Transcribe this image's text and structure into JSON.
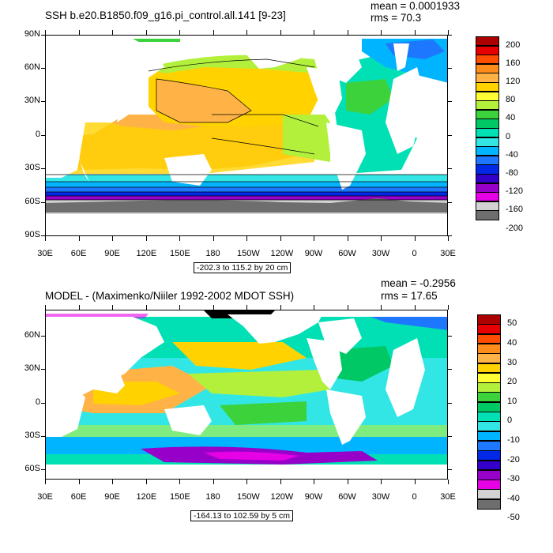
{
  "panels": [
    {
      "title": "SSH b.e20.B1850.f09_g16.pi_control.all.141 [9-23]",
      "mean_label": "mean = 0.0001933",
      "rms_label": "rms = 70.3",
      "range_label": "-202.3 to 115.2 by 20 cm",
      "lat_labels": [
        "90N",
        "60N",
        "30N",
        "0",
        "30S",
        "60S",
        "90S"
      ],
      "lon_labels": [
        "30E",
        "60E",
        "90E",
        "120E",
        "150E",
        "180",
        "150W",
        "120W",
        "90W",
        "60W",
        "30W",
        "0",
        "30E"
      ],
      "colorbar_labels": [
        "200",
        "160",
        "120",
        "80",
        "40",
        "0",
        "-40",
        "-80",
        "-120",
        "-160",
        "-200"
      ],
      "colorbar_colors": [
        "#ad0000",
        "#e60000",
        "#ff4d00",
        "#ff8c1a",
        "#ffb347",
        "#ffd200",
        "#ffff33",
        "#b2f03c",
        "#3cd23c",
        "#00c864",
        "#00e0b4",
        "#33e6e6",
        "#00b4ff",
        "#1e78ff",
        "#0028e6",
        "#3200c8",
        "#9600c8",
        "#e600e6",
        "#d2d2d2",
        "#6e6e6e"
      ]
    },
    {
      "title": "MODEL - (Maximenko/Niiler 1992-2002 MDOT SSH)",
      "mean_label": "mean = -0.2956",
      "rms_label": "rms = 17.65",
      "range_label": "-164.13 to 102.59 by 5 cm",
      "lat_labels": [
        "60N",
        "30N",
        "0",
        "30S",
        "60S"
      ],
      "lon_labels": [
        "30E",
        "60E",
        "90E",
        "120E",
        "150E",
        "180",
        "150W",
        "120W",
        "90W",
        "60W",
        "30W",
        "0",
        "30E"
      ],
      "colorbar_labels": [
        "50",
        "40",
        "30",
        "20",
        "10",
        "0",
        "-10",
        "-20",
        "-30",
        "-40",
        "-50"
      ],
      "colorbar_colors": [
        "#ad0000",
        "#e60000",
        "#ff4d00",
        "#ff8c1a",
        "#ffb347",
        "#ffd200",
        "#ffff33",
        "#b2f03c",
        "#3cd23c",
        "#00c864",
        "#00e0b4",
        "#33e6e6",
        "#00b4ff",
        "#1e78ff",
        "#0028e6",
        "#3200c8",
        "#9600c8",
        "#e600e6",
        "#d2d2d2",
        "#6e6e6e"
      ]
    }
  ]
}
